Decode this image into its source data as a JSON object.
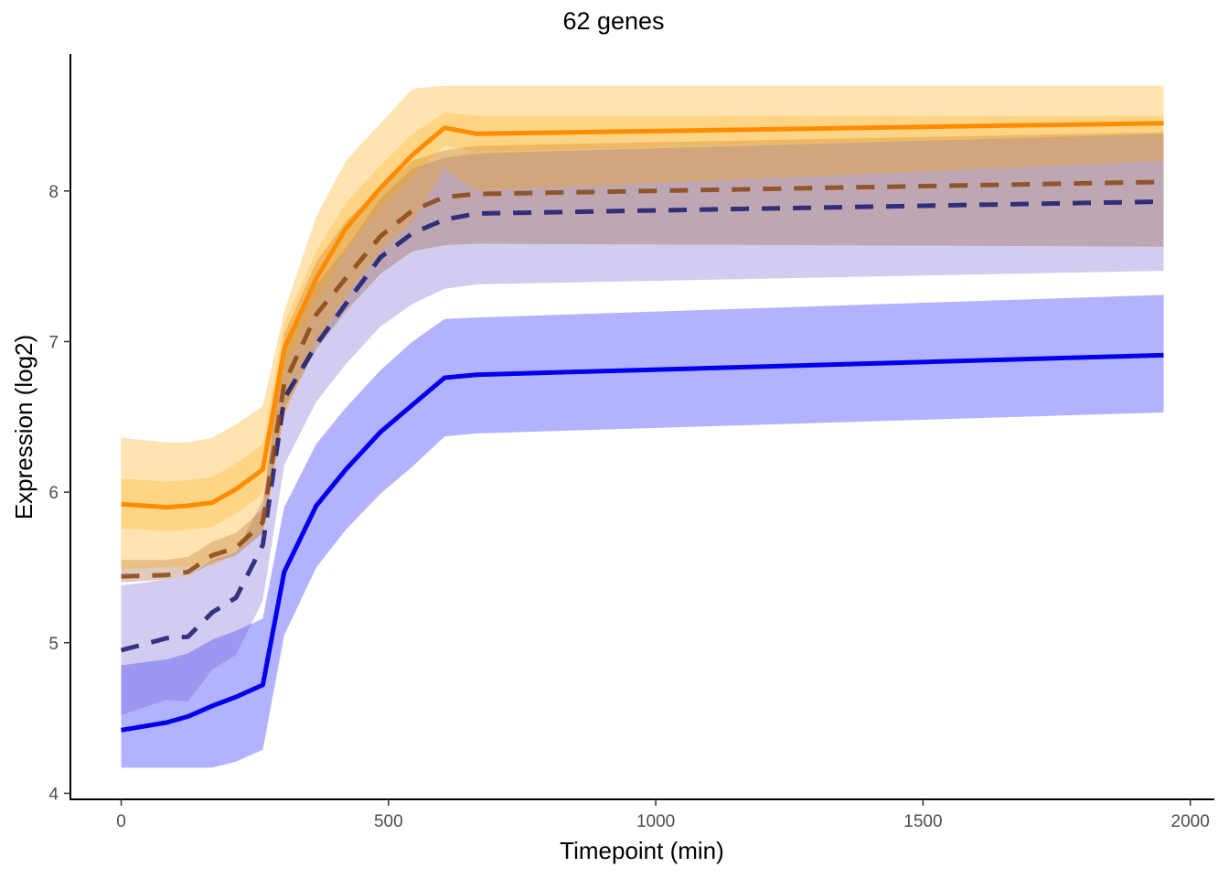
{
  "chart_data": {
    "type": "line",
    "title": "62 genes",
    "xlabel": "Timepoint (min)",
    "ylabel": "Expression (log2)",
    "xlim": [
      -95,
      2045
    ],
    "ylim": [
      3.96,
      8.91
    ],
    "x_ticks": [
      0,
      500,
      1000,
      1500,
      2000
    ],
    "y_ticks": [
      4,
      5,
      6,
      7,
      8
    ],
    "series": [
      {
        "name": "orange-solid",
        "color": "#FF8C00",
        "dash": false,
        "x": [
          0,
          85,
          125,
          170,
          215,
          265,
          305,
          365,
          420,
          485,
          545,
          605,
          665,
          1950
        ],
        "y": [
          5.92,
          5.9,
          5.91,
          5.93,
          6.02,
          6.15,
          6.95,
          7.42,
          7.75,
          8.02,
          8.24,
          8.42,
          8.38,
          8.45
        ],
        "band_outer": {
          "upper": [
            6.36,
            6.33,
            6.33,
            6.36,
            6.45,
            6.57,
            7.2,
            7.83,
            8.2,
            8.45,
            8.68,
            8.7,
            8.7,
            8.7
          ],
          "lower": [
            5.49,
            5.5,
            5.5,
            5.51,
            5.6,
            5.74,
            6.5,
            7.0,
            7.3,
            7.6,
            7.8,
            8.15,
            8.0,
            8.2
          ]
        },
        "band_inner": {
          "upper": [
            6.09,
            6.07,
            6.08,
            6.1,
            6.19,
            6.32,
            7.12,
            7.6,
            7.92,
            8.17,
            8.38,
            8.52,
            8.5,
            8.5
          ],
          "lower": [
            5.76,
            5.74,
            5.75,
            5.77,
            5.86,
            5.99,
            6.8,
            7.26,
            7.6,
            7.88,
            8.1,
            8.3,
            8.26,
            8.38
          ]
        }
      },
      {
        "name": "brown-dashed",
        "color": "#8B4513",
        "dash": true,
        "x": [
          0,
          85,
          125,
          170,
          215,
          265,
          305,
          365,
          420,
          485,
          545,
          605,
          665,
          1950
        ],
        "y": [
          5.44,
          5.45,
          5.47,
          5.58,
          5.63,
          5.8,
          6.72,
          7.18,
          7.42,
          7.7,
          7.87,
          7.96,
          7.98,
          8.06
        ],
        "band_outer": {
          "upper": [
            5.55,
            5.55,
            5.57,
            5.67,
            5.73,
            5.89,
            7.05,
            7.53,
            7.8,
            8.02,
            8.2,
            8.27,
            8.3,
            8.39
          ],
          "lower": [
            5.4,
            5.42,
            5.44,
            5.53,
            5.58,
            5.73,
            6.55,
            6.95,
            7.2,
            7.45,
            7.6,
            7.64,
            7.65,
            7.63
          ]
        }
      },
      {
        "name": "navy-dashed",
        "color": "#191970",
        "dash": true,
        "x": [
          0,
          85,
          125,
          170,
          215,
          265,
          305,
          365,
          420,
          485,
          545,
          605,
          665,
          1950
        ],
        "y": [
          4.95,
          5.03,
          5.04,
          5.2,
          5.3,
          5.65,
          6.62,
          6.98,
          7.25,
          7.56,
          7.72,
          7.81,
          7.85,
          7.93
        ],
        "band_outer": {
          "upper": [
            5.38,
            5.42,
            5.44,
            5.55,
            5.6,
            5.95,
            7.0,
            7.38,
            7.62,
            7.95,
            8.15,
            8.22,
            8.25,
            8.38
          ],
          "lower": [
            4.52,
            4.62,
            4.61,
            4.82,
            4.92,
            5.28,
            6.18,
            6.6,
            6.85,
            7.1,
            7.25,
            7.35,
            7.38,
            7.47
          ]
        }
      },
      {
        "name": "blue-solid",
        "color": "#0000EE",
        "dash": false,
        "x": [
          0,
          85,
          125,
          170,
          215,
          265,
          305,
          365,
          420,
          485,
          545,
          605,
          665,
          1950
        ],
        "y": [
          4.42,
          4.47,
          4.51,
          4.58,
          4.64,
          4.72,
          5.47,
          5.91,
          6.15,
          6.4,
          6.58,
          6.76,
          6.78,
          6.91
        ],
        "band_outer": {
          "upper": [
            4.85,
            4.89,
            4.93,
            5.02,
            5.08,
            5.16,
            5.9,
            6.32,
            6.56,
            6.81,
            7.0,
            7.15,
            7.16,
            7.31
          ],
          "lower": [
            4.17,
            4.17,
            4.17,
            4.17,
            4.21,
            4.29,
            5.05,
            5.5,
            5.75,
            5.99,
            6.17,
            6.37,
            6.39,
            6.53
          ]
        }
      }
    ]
  }
}
